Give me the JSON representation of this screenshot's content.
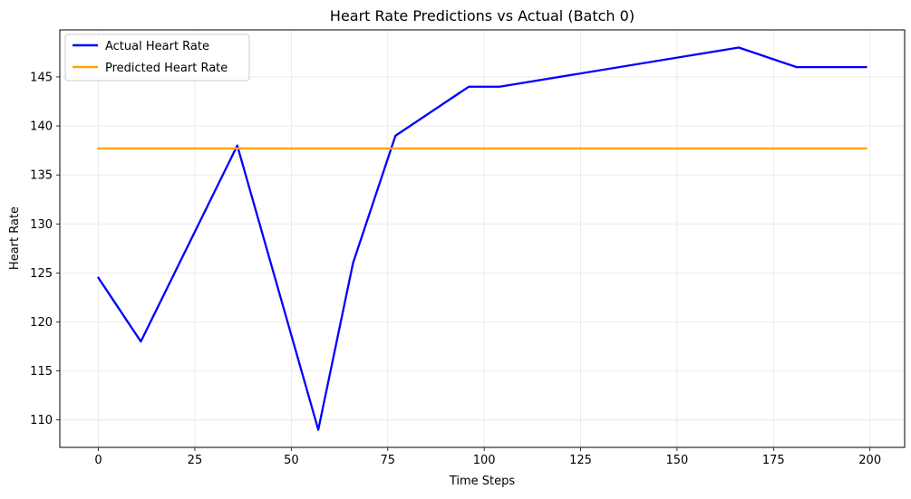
{
  "chart_data": {
    "type": "line",
    "title": "Heart Rate Predictions vs Actual (Batch 0)",
    "xlabel": "Time Steps",
    "ylabel": "Heart Rate",
    "xlim": [
      -10,
      209
    ],
    "ylim": [
      107.2,
      149.8
    ],
    "xticks": [
      0,
      25,
      50,
      75,
      100,
      125,
      150,
      175,
      200
    ],
    "yticks": [
      110,
      115,
      120,
      125,
      130,
      135,
      140,
      145
    ],
    "grid": true,
    "legend_position": "top-left",
    "series": [
      {
        "name": "Actual Heart Rate",
        "color": "#0000ff",
        "x": [
          0,
          11,
          36,
          57,
          66,
          77,
          96,
          104,
          166,
          181,
          199
        ],
        "y": [
          124.5,
          118,
          138,
          109,
          126,
          139,
          144,
          144,
          148,
          146,
          146
        ]
      },
      {
        "name": "Predicted Heart Rate",
        "color": "#ffa500",
        "x": [
          0,
          199
        ],
        "y": [
          137.7,
          137.7
        ]
      }
    ]
  }
}
